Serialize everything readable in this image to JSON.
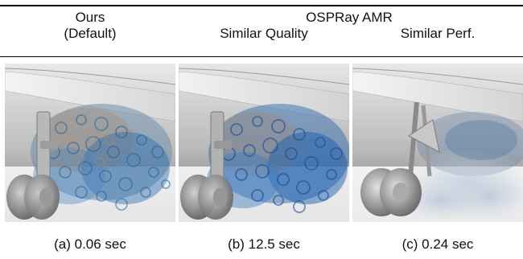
{
  "header": {
    "ours_line1": "Ours",
    "ours_line2": "(Default)",
    "group_label": "OSPRay AMR",
    "col2_label": "Similar Quality",
    "col3_label": "Similar Perf."
  },
  "captions": {
    "a": "(a) 0.06 sec",
    "b": "(b) 12.5 sec",
    "c": "(c) 0.24 sec"
  }
}
